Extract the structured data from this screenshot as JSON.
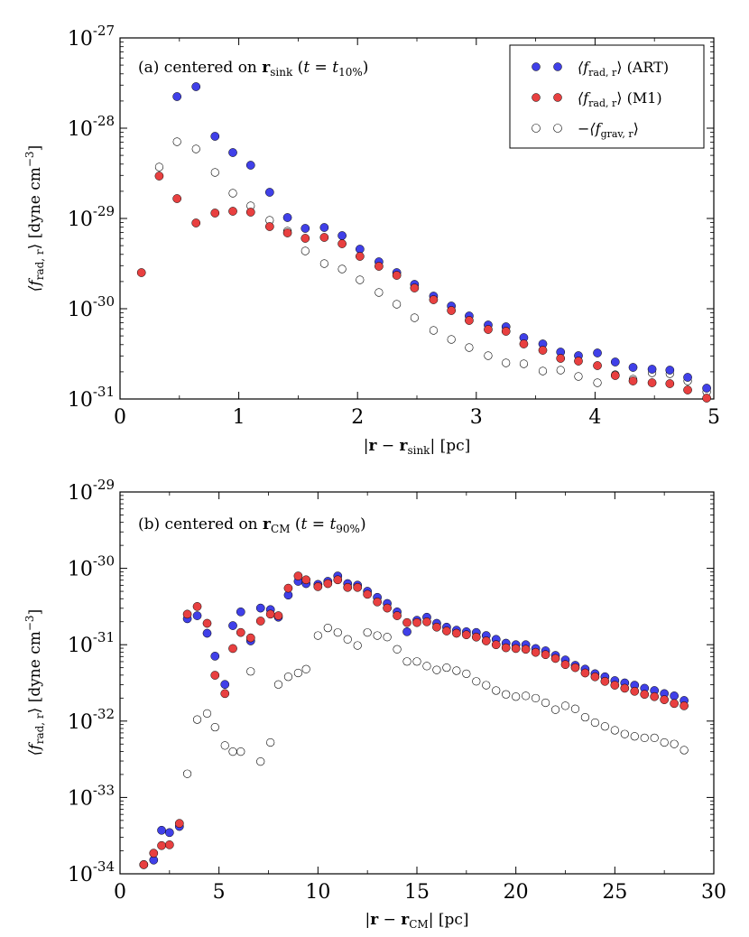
{
  "colors": {
    "art": "#4040e8",
    "m1": "#e84040",
    "grav": "#ffffff",
    "edge": "#000000"
  },
  "legend": {
    "art": {
      "sym": "⟨f",
      "sub": "rad, r",
      "close": "⟩",
      "suffix": " (ART)"
    },
    "m1": {
      "sym": "⟨f",
      "sub": "rad, r",
      "close": "⟩",
      "suffix": " (M1)"
    },
    "grav": {
      "sym": "−⟨f",
      "sub": "grav, r",
      "close": "⟩",
      "suffix": ""
    }
  },
  "chart_data": [
    {
      "type": "scatter",
      "xscale": "linear",
      "yscale": "log",
      "xlim": [
        0,
        5
      ],
      "ylim_exp": [
        -31,
        -27
      ],
      "xticks": [
        "0",
        "1",
        "2",
        "3",
        "4",
        "5"
      ],
      "ytick_base": "10",
      "ytick_exps": [
        "-31",
        "-30",
        "-29",
        "-28",
        "-27"
      ],
      "annotation": {
        "prefix": "(a) centered on ",
        "vec": "r",
        "vec_sub": "sink",
        "open": " (",
        "t": "t",
        "eq": " = ",
        "t2": "t",
        "t2_sub": "10%",
        "close": ")"
      },
      "xlabel": {
        "open": "|",
        "a": "r",
        "minus": " − ",
        "b": "r",
        "sub": "sink",
        "close": "| [pc]"
      },
      "ylabel": {
        "open": "⟨f",
        "sub": "rad, r",
        "close": "⟩ [dyne cm",
        "sup": "−3",
        "end": "]"
      },
      "series": [
        {
          "name": "⟨f_rad,r⟩ (ART)",
          "key": "art",
          "x": [
            0.48,
            0.64,
            0.8,
            0.95,
            1.1,
            1.26,
            1.41,
            1.56,
            1.72,
            1.87,
            2.02,
            2.18,
            2.33,
            2.48,
            2.64,
            2.79,
            2.94,
            3.1,
            3.25,
            3.4,
            3.56,
            3.71,
            3.86,
            4.02,
            4.17,
            4.32,
            4.48,
            4.63,
            4.78,
            4.94
          ],
          "y_exp": [
            -27.65,
            -27.54,
            -28.09,
            -28.27,
            -28.41,
            -28.71,
            -28.99,
            -29.11,
            -29.1,
            -29.19,
            -29.34,
            -29.48,
            -29.6,
            -29.73,
            -29.86,
            -29.97,
            -30.08,
            -30.18,
            -30.2,
            -30.32,
            -30.39,
            -30.48,
            -30.52,
            -30.49,
            -30.59,
            -30.65,
            -30.67,
            -30.68,
            -30.76,
            -30.88
          ]
        },
        {
          "name": "⟨f_rad,r⟩ (M1)",
          "key": "m1",
          "x": [
            0.18,
            0.33,
            0.48,
            0.64,
            0.8,
            0.95,
            1.1,
            1.26,
            1.41,
            1.56,
            1.72,
            1.87,
            2.02,
            2.18,
            2.33,
            2.48,
            2.64,
            2.79,
            2.94,
            3.1,
            3.25,
            3.4,
            3.56,
            3.71,
            3.86,
            4.02,
            4.17,
            4.32,
            4.48,
            4.63,
            4.78,
            4.94
          ],
          "y_exp": [
            -29.6,
            -28.53,
            -28.78,
            -29.05,
            -28.94,
            -28.92,
            -28.93,
            -29.09,
            -29.16,
            -29.22,
            -29.21,
            -29.28,
            -29.42,
            -29.53,
            -29.63,
            -29.77,
            -29.9,
            -30.02,
            -30.13,
            -30.23,
            -30.25,
            -30.39,
            -30.46,
            -30.55,
            -30.58,
            -30.63,
            -30.74,
            -30.8,
            -30.82,
            -30.83,
            -30.9,
            -30.99
          ]
        },
        {
          "name": "−⟨f_grav,r⟩",
          "key": "grav",
          "x": [
            0.33,
            0.48,
            0.64,
            0.8,
            0.95,
            1.1,
            1.26,
            1.41,
            1.56,
            1.72,
            1.87,
            2.02,
            2.18,
            2.33,
            2.48,
            2.64,
            2.79,
            2.94,
            3.1,
            3.25,
            3.4,
            3.56,
            3.71,
            3.86,
            4.02,
            4.17,
            4.32,
            4.48,
            4.63,
            4.78,
            4.94
          ],
          "y_exp": [
            -28.43,
            -28.15,
            -28.23,
            -28.49,
            -28.72,
            -28.86,
            -29.02,
            -29.14,
            -29.36,
            -29.5,
            -29.56,
            -29.68,
            -29.82,
            -29.95,
            -30.1,
            -30.24,
            -30.34,
            -30.43,
            -30.52,
            -30.6,
            -30.61,
            -30.69,
            -30.68,
            -30.75,
            -30.82,
            -30.73,
            -30.78,
            -30.71,
            -30.72,
            -30.8,
            -30.92
          ]
        }
      ]
    },
    {
      "type": "scatter",
      "xscale": "linear",
      "yscale": "log",
      "xlim": [
        0,
        30
      ],
      "ylim_exp": [
        -34,
        -29
      ],
      "xticks": [
        "0",
        "5",
        "10",
        "15",
        "20",
        "25",
        "30"
      ],
      "ytick_base": "10",
      "ytick_exps": [
        "-34",
        "-33",
        "-32",
        "-31",
        "-30",
        "-29"
      ],
      "annotation": {
        "prefix": "(b) centered on ",
        "vec": "r",
        "vec_sub": "CM",
        "open": " (",
        "t": "t",
        "eq": " = ",
        "t2": "t",
        "t2_sub": "90%",
        "close": ")"
      },
      "xlabel": {
        "open": "|",
        "a": "r",
        "minus": " − ",
        "b": "r",
        "sub": "CM",
        "close": "| [pc]"
      },
      "ylabel": {
        "open": "⟨f",
        "sub": "rad, r",
        "close": "⟩ [dyne cm",
        "sup": "−3",
        "end": "]"
      },
      "series": [
        {
          "name": "⟨f_rad,r⟩ (ART)",
          "key": "art",
          "x": [
            1.2,
            1.7,
            2.1,
            2.5,
            3.0,
            3.4,
            3.9,
            4.4,
            4.8,
            5.3,
            5.7,
            6.1,
            6.6,
            7.1,
            7.6,
            8.0,
            8.5,
            9.0,
            9.4,
            10.0,
            10.5,
            11.0,
            11.5,
            12.0,
            12.5,
            13.0,
            13.5,
            14.0,
            14.5,
            15.0,
            15.5,
            16.0,
            16.5,
            17.0,
            17.5,
            18.0,
            18.5,
            19.0,
            19.5,
            20.0,
            20.5,
            21.0,
            21.5,
            22.0,
            22.5,
            23.0,
            23.5,
            24.0,
            24.5,
            25.0,
            25.5,
            26.0,
            26.5,
            27.0,
            27.5,
            28.0,
            28.5
          ],
          "y_exp": [
            -33.88,
            -33.82,
            -33.43,
            -33.46,
            -33.38,
            -30.66,
            -30.62,
            -30.85,
            -31.15,
            -31.52,
            -30.75,
            -30.57,
            -30.95,
            -30.52,
            -30.54,
            -30.64,
            -30.35,
            -30.17,
            -30.2,
            -30.21,
            -30.17,
            -30.1,
            -30.2,
            -30.22,
            -30.3,
            -30.38,
            -30.46,
            -30.57,
            -30.83,
            -30.68,
            -30.64,
            -30.72,
            -30.77,
            -30.81,
            -30.83,
            -30.84,
            -30.88,
            -30.93,
            -30.98,
            -31.0,
            -31.0,
            -31.05,
            -31.08,
            -31.14,
            -31.2,
            -31.27,
            -31.32,
            -31.38,
            -31.42,
            -31.47,
            -31.5,
            -31.53,
            -31.57,
            -31.6,
            -31.64,
            -31.67,
            -31.73
          ]
        },
        {
          "name": "⟨f_rad,r⟩ (M1)",
          "key": "m1",
          "x": [
            1.2,
            1.7,
            2.1,
            2.5,
            3.0,
            3.4,
            3.9,
            4.4,
            4.8,
            5.3,
            5.7,
            6.1,
            6.6,
            7.1,
            7.6,
            8.0,
            8.5,
            9.0,
            9.4,
            10.0,
            10.5,
            11.0,
            11.5,
            12.0,
            12.5,
            13.0,
            13.5,
            14.0,
            14.5,
            15.0,
            15.5,
            16.0,
            16.5,
            17.0,
            17.5,
            18.0,
            18.5,
            19.0,
            19.5,
            20.0,
            20.5,
            21.0,
            21.5,
            22.0,
            22.5,
            23.0,
            23.5,
            24.0,
            24.5,
            25.0,
            25.5,
            26.0,
            26.5,
            27.0,
            27.5,
            28.0,
            28.5
          ],
          "y_exp": [
            -33.88,
            -33.73,
            -33.63,
            -33.62,
            -33.34,
            -30.6,
            -30.5,
            -30.72,
            -31.4,
            -31.64,
            -31.05,
            -30.84,
            -30.91,
            -30.69,
            -30.6,
            -30.62,
            -30.26,
            -30.1,
            -30.15,
            -30.24,
            -30.2,
            -30.15,
            -30.25,
            -30.25,
            -30.34,
            -30.44,
            -30.52,
            -30.62,
            -30.71,
            -30.71,
            -30.7,
            -30.77,
            -30.82,
            -30.85,
            -30.87,
            -30.9,
            -30.95,
            -31.0,
            -31.04,
            -31.05,
            -31.06,
            -31.1,
            -31.13,
            -31.18,
            -31.26,
            -31.3,
            -31.37,
            -31.42,
            -31.48,
            -31.53,
            -31.57,
            -31.61,
            -31.65,
            -31.68,
            -31.72,
            -31.77,
            -31.8
          ]
        },
        {
          "name": "−⟨f_grav,r⟩",
          "key": "grav",
          "x": [
            3.4,
            3.9,
            4.4,
            4.8,
            5.3,
            5.7,
            6.1,
            6.6,
            7.1,
            7.6,
            8.0,
            8.5,
            9.0,
            9.4,
            10.0,
            10.5,
            11.0,
            11.5,
            12.0,
            12.5,
            13.0,
            13.5,
            14.0,
            14.5,
            15.0,
            15.5,
            16.0,
            16.5,
            17.0,
            17.5,
            18.0,
            18.5,
            19.0,
            19.5,
            20.0,
            20.5,
            21.0,
            21.5,
            22.0,
            22.5,
            23.0,
            23.5,
            24.0,
            24.5,
            25.0,
            25.5,
            26.0,
            26.5,
            27.0,
            27.5,
            28.0,
            28.5
          ],
          "y_exp": [
            -32.69,
            -31.98,
            -31.9,
            -32.08,
            -32.32,
            -32.4,
            -32.4,
            -31.35,
            -32.53,
            -32.28,
            -31.52,
            -31.42,
            -31.37,
            -31.32,
            -30.88,
            -30.78,
            -30.84,
            -30.93,
            -31.01,
            -30.84,
            -30.88,
            -30.9,
            -31.06,
            -31.22,
            -31.22,
            -31.28,
            -31.33,
            -31.3,
            -31.34,
            -31.38,
            -31.48,
            -31.53,
            -31.6,
            -31.65,
            -31.68,
            -31.67,
            -31.7,
            -31.76,
            -31.85,
            -31.8,
            -31.84,
            -31.95,
            -32.02,
            -32.07,
            -32.12,
            -32.17,
            -32.2,
            -32.22,
            -32.22,
            -32.28,
            -32.3,
            -32.38
          ]
        }
      ]
    }
  ]
}
